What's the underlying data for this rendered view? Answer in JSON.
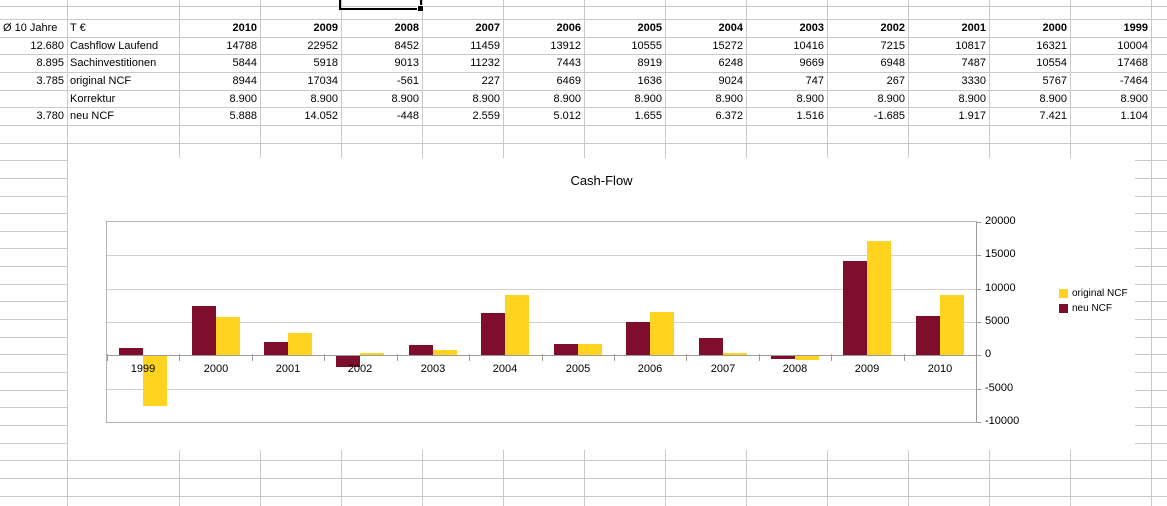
{
  "table": {
    "corner_label": "Ø 10 Jahre",
    "unit_label": "T €",
    "years": [
      "2010",
      "2009",
      "2008",
      "2007",
      "2006",
      "2005",
      "2004",
      "2003",
      "2002",
      "2001",
      "2000",
      "1999"
    ],
    "rows": [
      {
        "avg": "12.680",
        "label": "Cashflow Laufend",
        "values": [
          "14788",
          "22952",
          "8452",
          "11459",
          "13912",
          "10555",
          "15272",
          "10416",
          "7215",
          "10817",
          "16321",
          "10004"
        ]
      },
      {
        "avg": "8.895",
        "label": "Sachinvestitionen",
        "values": [
          "5844",
          "5918",
          "9013",
          "11232",
          "7443",
          "8919",
          "6248",
          "9669",
          "6948",
          "7487",
          "10554",
          "17468"
        ]
      },
      {
        "avg": "3.785",
        "label": "original NCF",
        "values": [
          "8944",
          "17034",
          "-561",
          "227",
          "6469",
          "1636",
          "9024",
          "747",
          "267",
          "3330",
          "5767",
          "-7464"
        ]
      },
      {
        "avg": "",
        "label": "Korrektur",
        "values": [
          "8.900",
          "8.900",
          "8.900",
          "8.900",
          "8.900",
          "8.900",
          "8.900",
          "8.900",
          "8.900",
          "8.900",
          "8.900",
          "8.900"
        ]
      },
      {
        "avg": "3.780",
        "label": "neu NCF",
        "values": [
          "5.888",
          "14.052",
          "-448",
          "2.559",
          "5.012",
          "1.655",
          "6.372",
          "1.516",
          "-1.685",
          "1.917",
          "7.421",
          "1.104"
        ]
      }
    ]
  },
  "chart_data": {
    "type": "bar",
    "title": "Cash-Flow",
    "categories": [
      "1999",
      "2000",
      "2001",
      "2002",
      "2003",
      "2004",
      "2005",
      "2006",
      "2007",
      "2008",
      "2009",
      "2010"
    ],
    "series": [
      {
        "name": "original NCF",
        "color": "#ffd320",
        "values": [
          -7464,
          5767,
          3330,
          267,
          747,
          9024,
          1636,
          6469,
          227,
          -561,
          17034,
          8944
        ]
      },
      {
        "name": "neu NCF",
        "color": "#7f0e2c",
        "values": [
          1104,
          7421,
          1917,
          -1685,
          1516,
          6372,
          1655,
          5012,
          2559,
          -448,
          14052,
          5888
        ]
      }
    ],
    "bar_order": [
      1,
      0
    ],
    "ylim": [
      -10000,
      20000
    ],
    "ytick_interval": 5000,
    "ytick_labels": [
      "20000",
      "15000",
      "10000",
      "5000",
      "0",
      "-5000",
      "-10000"
    ],
    "grid": true,
    "legend_position": "right",
    "colors": {
      "grid_line": "#d0d0d0",
      "axis_line": "#9b9b9b"
    }
  }
}
